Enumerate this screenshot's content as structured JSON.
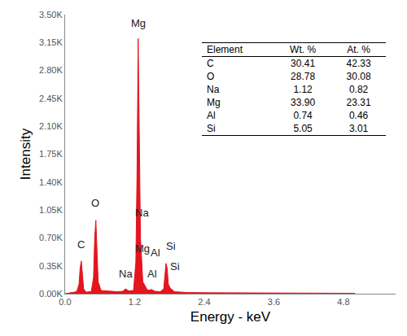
{
  "chart_data": {
    "type": "area",
    "x_label": "Energy - keV",
    "y_label": "Intensity",
    "color": "#e3151f",
    "x": [
      0.0,
      0.1,
      0.2,
      0.24,
      0.26,
      0.28,
      0.3,
      0.32,
      0.36,
      0.45,
      0.49,
      0.51,
      0.53,
      0.55,
      0.57,
      0.62,
      0.75,
      0.9,
      1.0,
      1.03,
      1.05,
      1.07,
      1.1,
      1.18,
      1.22,
      1.24,
      1.26,
      1.28,
      1.3,
      1.34,
      1.42,
      1.47,
      1.49,
      1.51,
      1.55,
      1.64,
      1.7,
      1.72,
      1.74,
      1.76,
      1.78,
      1.82,
      1.85,
      1.88,
      1.95,
      2.1,
      2.4,
      3.0,
      3.6,
      4.2,
      5.0
    ],
    "values": [
      0,
      10,
      25,
      120,
      330,
      410,
      250,
      60,
      20,
      25,
      200,
      700,
      920,
      600,
      150,
      40,
      30,
      25,
      30,
      55,
      60,
      45,
      35,
      40,
      400,
      1500,
      3200,
      2100,
      700,
      150,
      45,
      45,
      55,
      45,
      30,
      25,
      60,
      220,
      380,
      320,
      120,
      60,
      50,
      25,
      20,
      15,
      12,
      10,
      8,
      6,
      5
    ],
    "xlim": [
      0,
      5.7
    ],
    "xticks": [
      {
        "value": 0,
        "label": "0.0"
      },
      1.2,
      2.4,
      3.6,
      4.8
    ],
    "ylim": [
      0,
      3500
    ],
    "yticks": [
      {
        "value": 0,
        "label": "0.00K"
      },
      {
        "value": 350,
        "label": "0.35K"
      },
      {
        "value": 700,
        "label": "0.70K"
      },
      {
        "value": 1050,
        "label": "1.05K"
      },
      {
        "value": 1400,
        "label": "1.40K"
      },
      {
        "value": 1750,
        "label": "1.75K"
      },
      {
        "value": 2100,
        "label": "2.10K"
      },
      {
        "value": 2450,
        "label": "2.45K"
      },
      {
        "value": 2800,
        "label": "2.80K"
      },
      {
        "value": 3150,
        "label": "3.15K"
      },
      {
        "value": 3500,
        "label": "3.50K"
      }
    ],
    "grid": false,
    "annotations": [
      {
        "text": "C",
        "x": 0.27,
        "y": 520
      },
      {
        "text": "O",
        "x": 0.52,
        "y": 1040
      },
      {
        "text": "Mg",
        "x": 1.26,
        "y": 3300
      },
      {
        "text": "Na",
        "x": 1.33,
        "y": 920
      },
      {
        "text": "Mg",
        "x": 1.34,
        "y": 470
      },
      {
        "text": "Na",
        "x": 1.05,
        "y": 150
      },
      {
        "text": "Al",
        "x": 1.56,
        "y": 420
      },
      {
        "text": "Al",
        "x": 1.5,
        "y": 150
      },
      {
        "text": "Si",
        "x": 1.82,
        "y": 500
      },
      {
        "text": "Si",
        "x": 1.9,
        "y": 250
      }
    ],
    "table": {
      "columns": [
        "Element",
        "Wt. %",
        "At. %"
      ],
      "rows": [
        [
          "C",
          "30.41",
          "42.33"
        ],
        [
          "O",
          "28.78",
          "30.08"
        ],
        [
          "Na",
          "1.12",
          "0.82"
        ],
        [
          "Mg",
          "33.90",
          "23.31"
        ],
        [
          "Al",
          "0.74",
          "0.46"
        ],
        [
          "Si",
          "5.05",
          "3.01"
        ]
      ]
    }
  }
}
